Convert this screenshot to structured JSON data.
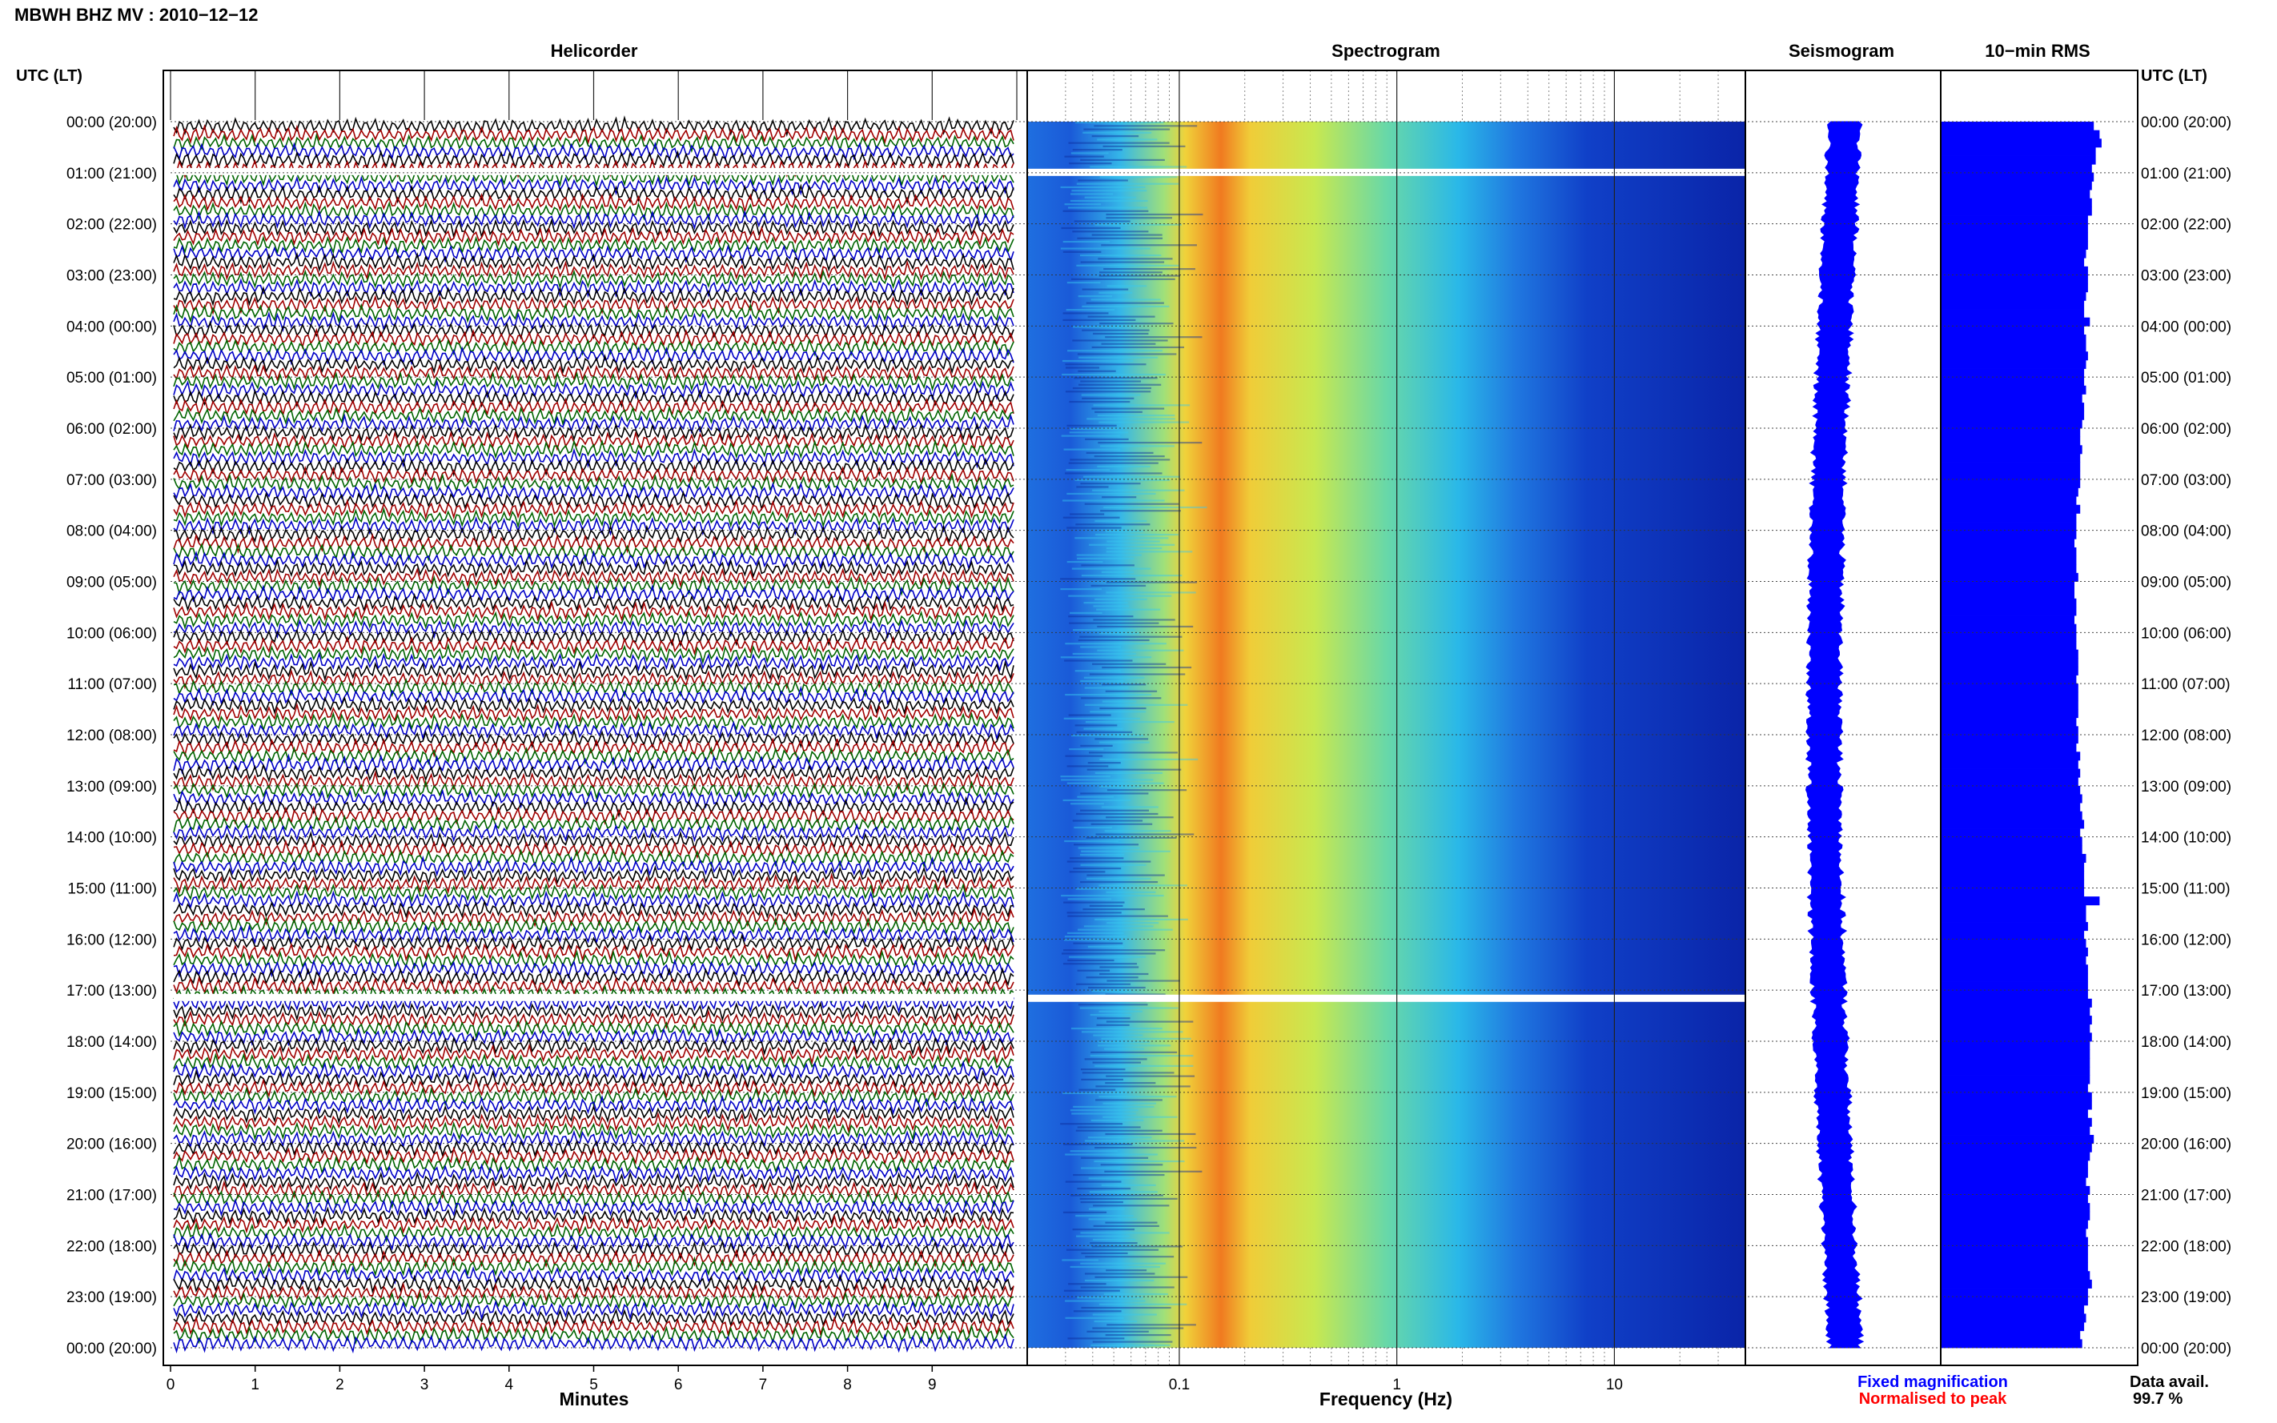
{
  "title": "MBWH BHZ MV : 2010−12−12",
  "panels": {
    "helicorder": "Helicorder",
    "spectrogram": "Spectrogram",
    "seismogram": "Seismogram",
    "rms": "10−min RMS"
  },
  "time_axis_label": "UTC (LT)",
  "time_labels": [
    "00:00 (20:00)",
    "01:00 (21:00)",
    "02:00 (22:00)",
    "03:00 (23:00)",
    "04:00 (00:00)",
    "05:00 (01:00)",
    "06:00 (02:00)",
    "07:00 (03:00)",
    "08:00 (04:00)",
    "09:00 (05:00)",
    "10:00 (06:00)",
    "11:00 (07:00)",
    "12:00 (08:00)",
    "13:00 (09:00)",
    "14:00 (10:00)",
    "15:00 (11:00)",
    "16:00 (12:00)",
    "17:00 (13:00)",
    "18:00 (14:00)",
    "19:00 (15:00)",
    "20:00 (16:00)",
    "21:00 (17:00)",
    "22:00 (18:00)",
    "23:00 (19:00)",
    "00:00 (20:00)"
  ],
  "minutes_ticks": [
    "0",
    "1",
    "2",
    "3",
    "4",
    "5",
    "6",
    "7",
    "8",
    "9"
  ],
  "minutes_label": "Minutes",
  "freq_ticks": [
    "0.1",
    "1",
    "10"
  ],
  "freq_label": "Frequency (Hz)",
  "legend": {
    "fixed": "Fixed magnification",
    "normalised": "Normalised to peak",
    "fixed_color": "#0000ff",
    "normalised_color": "#ff0000"
  },
  "data_avail_label": "Data avail.",
  "data_avail_value": "99.7 %",
  "colors": {
    "trace_cycle": [
      "#000000",
      "#a00000",
      "#006400",
      "#0000c8"
    ],
    "seismogram": "#0000ff",
    "rms": "#0000ff"
  },
  "chart_data": {
    "type": "heatmap",
    "title": "MBWH BHZ MV : 2010−12−12",
    "panels": [
      "Helicorder",
      "Spectrogram",
      "Seismogram",
      "10−min RMS"
    ],
    "helicorder": {
      "x_unit": "Minutes",
      "xlim": [
        0,
        10
      ],
      "rows_per_hour": 6,
      "hours": 24,
      "gaps_utc": [
        "01:00",
        "17:10"
      ]
    },
    "spectrogram": {
      "xlabel": "Frequency (Hz)",
      "scale": "log",
      "xlim": [
        0.02,
        40
      ],
      "dominant_band_hz": [
        0.15,
        0.3
      ],
      "gaps_utc": [
        "01:00",
        "17:10"
      ]
    },
    "rms": {
      "interval": "10−min",
      "values_fraction_of_max": [
        0.79,
        0.82,
        0.83,
        0.8,
        0.8,
        0.78,
        0.79,
        0.78,
        0.77,
        0.78,
        0.78,
        0.76,
        0.76,
        0.76,
        0.76,
        0.75,
        0.74,
        0.76,
        0.76,
        0.76,
        0.75,
        0.74,
        0.74,
        0.77,
        0.74,
        0.75,
        0.75,
        0.76,
        0.75,
        0.74,
        0.74,
        0.75,
        0.73,
        0.74,
        0.74,
        0.73,
        0.72,
        0.72,
        0.73,
        0.72,
        0.72,
        0.72,
        0.72,
        0.71,
        0.7,
        0.72,
        0.7,
        0.7,
        0.7,
        0.69,
        0.7,
        0.7,
        0.7,
        0.71,
        0.69,
        0.69,
        0.7,
        0.7,
        0.69,
        0.7,
        0.7,
        0.7,
        0.71,
        0.71,
        0.71,
        0.7,
        0.71,
        0.71,
        0.71,
        0.71,
        0.7,
        0.71,
        0.71,
        0.7,
        0.72,
        0.71,
        0.72,
        0.71,
        0.72,
        0.73,
        0.72,
        0.73,
        0.74,
        0.72,
        0.73,
        0.73,
        0.75,
        0.74,
        0.74,
        0.74,
        0.74,
        0.82,
        0.75,
        0.75,
        0.76,
        0.74,
        0.75,
        0.76,
        0.75,
        0.76,
        0.76,
        0.76,
        0.76,
        0.78,
        0.77,
        0.78,
        0.77,
        0.78,
        0.77,
        0.77,
        0.77,
        0.77,
        0.77,
        0.76,
        0.78,
        0.78,
        0.76,
        0.78,
        0.77,
        0.79,
        0.78,
        0.77,
        0.76,
        0.76,
        0.75,
        0.77,
        0.76,
        0.77,
        0.77,
        0.76,
        0.75,
        0.76,
        0.76,
        0.76,
        0.76,
        0.77,
        0.78,
        0.76,
        0.76,
        0.74,
        0.75,
        0.74,
        0.72,
        0.73
      ]
    },
    "data_availability_percent": 99.7
  }
}
